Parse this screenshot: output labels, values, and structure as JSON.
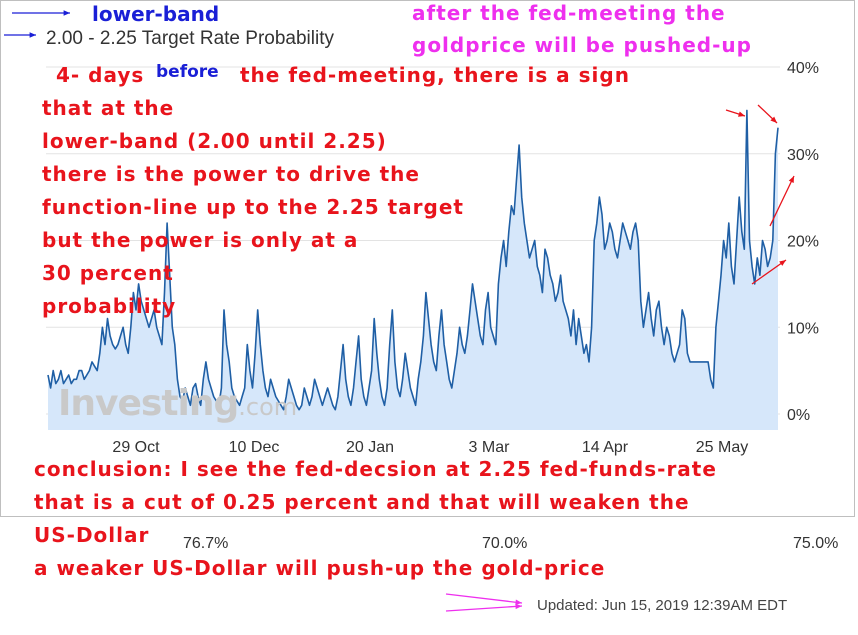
{
  "chart_data": {
    "type": "area",
    "title": "2.00 - 2.25 Target Rate Probability",
    "x_ticks": [
      "29 Oct",
      "10 Dec",
      "20 Jan",
      "3 Mar",
      "14 Apr",
      "25 May"
    ],
    "y_ticks": [
      "0%",
      "10%",
      "20%",
      "30%",
      "40%"
    ],
    "ylim": [
      0,
      40
    ],
    "grid": true,
    "series": [
      {
        "values": [
          4.5,
          3,
          5,
          3.5,
          4,
          5,
          3.5,
          4,
          4.5,
          3.5,
          4,
          4,
          5,
          5,
          4,
          4.5,
          5,
          6,
          5.5,
          5,
          7,
          10,
          8,
          11,
          9,
          8,
          7.5,
          8,
          9,
          10,
          8,
          7,
          10,
          14,
          12,
          15,
          13,
          12,
          11,
          10,
          11,
          12,
          10,
          9,
          8,
          14,
          22,
          16,
          10,
          8,
          4,
          2,
          1.5,
          3,
          2,
          1,
          3,
          3.5,
          2,
          1,
          4,
          6,
          4,
          3,
          2,
          1.5,
          1,
          3,
          12,
          8,
          6,
          3,
          2,
          1.5,
          1,
          2,
          3,
          8,
          5,
          3,
          7,
          12,
          8,
          5,
          3,
          2,
          4,
          3,
          2,
          1.5,
          1,
          0.5,
          2,
          4,
          3,
          2,
          1,
          0.5,
          1,
          3,
          2,
          1,
          2,
          4,
          3,
          2,
          1,
          2,
          3,
          2,
          1,
          0.5,
          2,
          5,
          8,
          4,
          2,
          1,
          3,
          6,
          9,
          4,
          2,
          1,
          3,
          5,
          11,
          7,
          4,
          2,
          1,
          3,
          8,
          12,
          6,
          3,
          2,
          4,
          7,
          5,
          3,
          2,
          1,
          4,
          6,
          9,
          14,
          11,
          8,
          6,
          5,
          9,
          12,
          8,
          6,
          4,
          3,
          5,
          7,
          10,
          8,
          7,
          9,
          12,
          15,
          13,
          11,
          9,
          8,
          12,
          14,
          10,
          9,
          8,
          15,
          18,
          20,
          17,
          21,
          24,
          23,
          27,
          31,
          25,
          22,
          20,
          18,
          19,
          20,
          17,
          16,
          14,
          19,
          18,
          16,
          15,
          13,
          14,
          16,
          13,
          12,
          11,
          9,
          12,
          8,
          11,
          9,
          7,
          8,
          6,
          10,
          20,
          22,
          25,
          23,
          19,
          20,
          22,
          21,
          19,
          18,
          20,
          22,
          21,
          20,
          19,
          21,
          22,
          20,
          13,
          10,
          12,
          14,
          11,
          9,
          12,
          13,
          10,
          8,
          10,
          9,
          7,
          6,
          7,
          8,
          12,
          11,
          7,
          6,
          6,
          6,
          6,
          6,
          6,
          6,
          6,
          4,
          3,
          10,
          13,
          16,
          20,
          18,
          22,
          17,
          15,
          20,
          25,
          21,
          19,
          35,
          20,
          17,
          15,
          18,
          16,
          20,
          19,
          17,
          18,
          20,
          30,
          33
        ]
      }
    ]
  },
  "annotations": {
    "lower_band": "lower-band",
    "before": "before",
    "four_days": "4- days",
    "after_line1": "after the fed-meeting the",
    "after_line2": "goldprice will be pushed-up",
    "desc": [
      "the fed-meeting, there is a sign",
      "that at the",
      "lower-band (2.00 until 2.25)",
      "there is the power to drive the",
      "function-line up to the 2.25 target",
      "but the power is only at a",
      "30 percent",
      "probability"
    ],
    "conclusion": [
      "conclusion: I see the fed-decsion at 2.25 fed-funds-rate",
      "that is a cut of 0.25 percent and that will weaken the",
      "US-Dollar",
      "a weaker US-Dollar will push-up the gold-price"
    ]
  },
  "watermark": {
    "brand": "Investing",
    "suffix": ".com"
  },
  "footer": {
    "values": [
      "76.7%",
      "70.0%",
      "75.0%"
    ],
    "updated": "Updated: Jun 15, 2019 12:39AM EDT"
  },
  "colors": {
    "line": "#1f5fa5",
    "fill": "#d6e7fa",
    "annotation_red": "#e8141c",
    "annotation_blue": "#1a1fd6",
    "annotation_magenta": "#ee2fee"
  }
}
